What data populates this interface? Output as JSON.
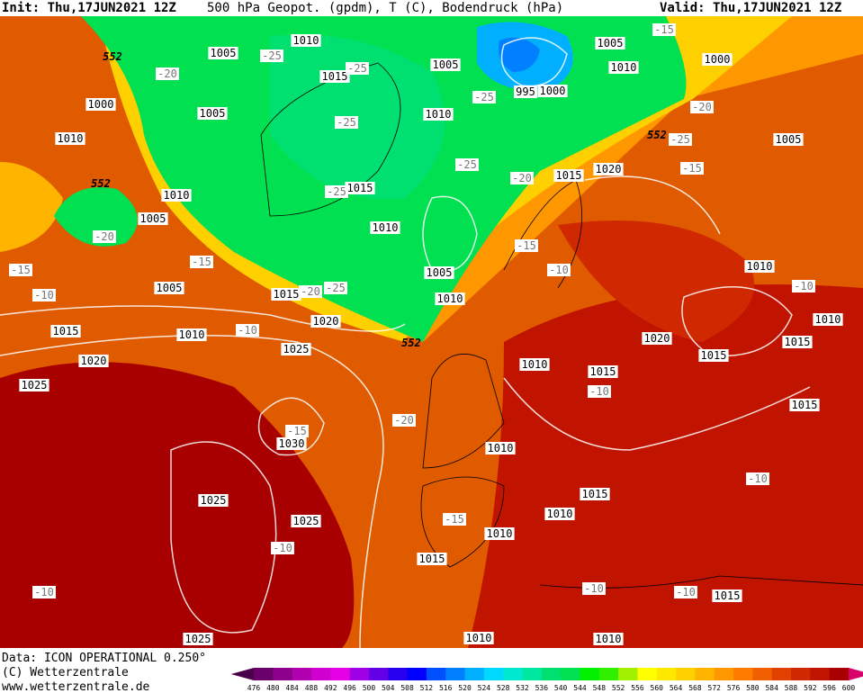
{
  "header": {
    "init": "Init: Thu,17JUN2021 12Z",
    "title": "500 hPa Geopot. (gpdm), T (C), Bodendruck (hPa)",
    "valid": "Valid: Thu,17JUN2021 12Z"
  },
  "isobar_labels": [
    "1010",
    "1005",
    "1015",
    "1005",
    "1005",
    "1010",
    "1000",
    "995",
    "1000",
    "1000",
    "1010",
    "1005",
    "1010",
    "1005",
    "1015",
    "1010",
    "1005",
    "1015",
    "1020",
    "1010",
    "1005",
    "1005",
    "1015",
    "1010",
    "1020",
    "1010",
    "1015",
    "1010",
    "1010",
    "1015",
    "1020",
    "1015",
    "1025",
    "1020",
    "1010",
    "1015",
    "1025",
    "1015",
    "1030",
    "1010",
    "1025",
    "1015",
    "1010",
    "1025",
    "1010",
    "1015",
    "1015",
    "1025",
    "1010",
    "1010"
  ],
  "temperature_labels": [
    "-25",
    "-25",
    "-20",
    "-25",
    "-25",
    "-20",
    "-25",
    "-15",
    "-25",
    "-20",
    "-25",
    "-20",
    "-15",
    "-15",
    "-15",
    "-10",
    "-10",
    "-20",
    "-25",
    "-10",
    "-10",
    "-10",
    "-20",
    "-15",
    "-15",
    "-10",
    "-10",
    "-10",
    "-10",
    "-10",
    "-15"
  ],
  "geopotential_labels": [
    "552",
    "552",
    "552",
    "552"
  ],
  "footer": {
    "data": "Data: ICON OPERATIONAL 0.250°",
    "copyright": "(C) Wetterzentrale",
    "url": "www.wetterzentrale.de"
  },
  "colorbar": {
    "ticks": [
      476,
      480,
      484,
      488,
      492,
      496,
      500,
      504,
      508,
      512,
      516,
      520,
      524,
      528,
      532,
      536,
      540,
      544,
      548,
      552,
      556,
      560,
      564,
      568,
      572,
      576,
      580,
      584,
      588,
      592,
      596,
      600
    ],
    "colors": [
      "#4a004a",
      "#6a006a",
      "#8c008c",
      "#b000b0",
      "#d000d0",
      "#e600e6",
      "#a000e6",
      "#6400e6",
      "#2800f0",
      "#0000ff",
      "#0050ff",
      "#0080ff",
      "#00b0ff",
      "#00d8ff",
      "#00e8d0",
      "#00e8a0",
      "#00e070",
      "#00e050",
      "#00f000",
      "#30f000",
      "#a0f000",
      "#ffff00",
      "#ffe800",
      "#ffd000",
      "#ffb400",
      "#ff9800",
      "#ff7c00",
      "#f06000",
      "#e04000",
      "#d02800",
      "#c01400",
      "#a80000",
      "#d8006a"
    ]
  }
}
